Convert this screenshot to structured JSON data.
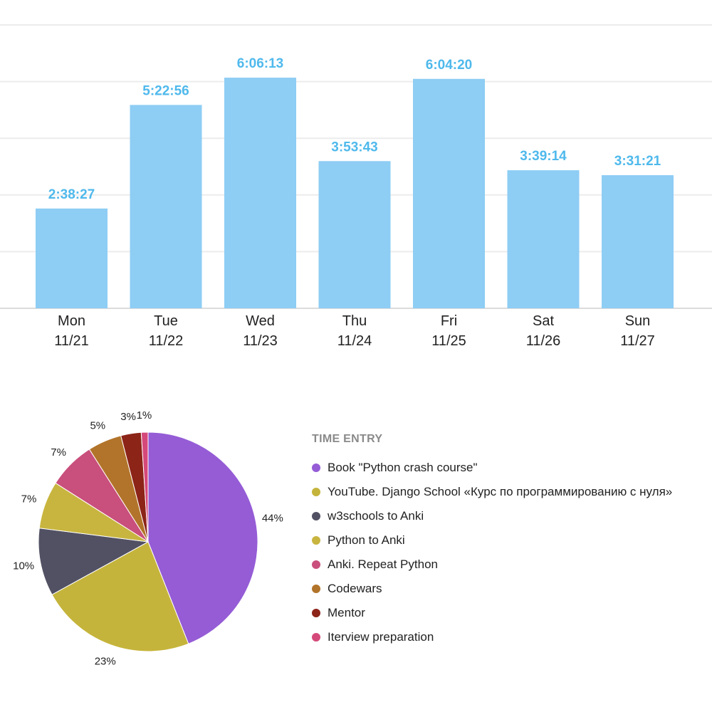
{
  "chart_data": [
    {
      "type": "bar",
      "categories": [
        "Mon",
        "Tue",
        "Wed",
        "Thu",
        "Fri",
        "Sat",
        "Sun"
      ],
      "dates": [
        "11/21",
        "11/22",
        "11/23",
        "11/24",
        "11/25",
        "11/26",
        "11/27"
      ],
      "value_labels": [
        "2:38:27",
        "5:22:56",
        "6:06:13",
        "3:53:43",
        "6:04:20",
        "3:39:14",
        "3:31:21"
      ],
      "values_hours": [
        2.641,
        5.382,
        6.104,
        3.895,
        6.072,
        3.654,
        3.523
      ],
      "ylim_hours": [
        0,
        7.5
      ],
      "grid": true,
      "bar_color": "#8ecdf4",
      "label_color": "#4fb9ec"
    },
    {
      "type": "pie",
      "legend_title": "TIME ENTRY",
      "legend_position": "right",
      "slices": [
        {
          "label": "Book \"Python crash course\"",
          "value": 44,
          "display": "44%",
          "color": "#955cd6"
        },
        {
          "label": "YouTube. Django School «Курс по программированию с нуля»",
          "value": 23,
          "display": "23%",
          "color": "#c5b43b"
        },
        {
          "label": "w3schools to Anki",
          "value": 10,
          "display": "10%",
          "color": "#525164"
        },
        {
          "label": "Python to Anki",
          "value": 7,
          "display": "7%",
          "color": "#c8b53f"
        },
        {
          "label": "Anki. Repeat Python",
          "value": 7,
          "display": "7%",
          "color": "#c94f7c"
        },
        {
          "label": "Codewars",
          "value": 5,
          "display": "5%",
          "color": "#b2742a"
        },
        {
          "label": "Mentor",
          "value": 3,
          "display": "3%",
          "color": "#8c2418"
        },
        {
          "label": "Iterview preparation",
          "value": 1,
          "display": "1%",
          "color": "#d5497a"
        }
      ]
    }
  ]
}
